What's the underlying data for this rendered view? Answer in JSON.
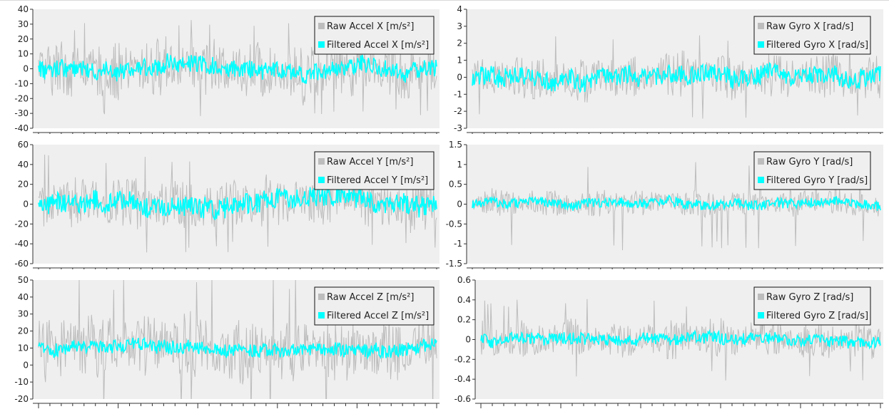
{
  "chart_data": [
    {
      "type": "line",
      "ylim": [
        -40,
        40
      ],
      "yticks": [
        -40,
        -30,
        -20,
        -10,
        0,
        10,
        20,
        30,
        40
      ],
      "ytick_labels": [
        "-40",
        "-30",
        "-20",
        "-10",
        "0",
        "10",
        "20",
        "30",
        "40"
      ],
      "legend": "top-right",
      "series": [
        {
          "name": "Raw Accel X [m/s²]",
          "color": "#bdbdbd",
          "center": 0,
          "amplitude": 20,
          "peak": 33
        },
        {
          "name": "Filtered Accel X [m/s²]",
          "color": "#00ffff",
          "center": 0,
          "amplitude": 6
        }
      ]
    },
    {
      "type": "line",
      "ylim": [
        -3,
        4
      ],
      "yticks": [
        -3,
        -2,
        -1,
        0,
        1,
        2,
        3,
        4
      ],
      "ytick_labels": [
        "-3",
        "-2",
        "-1",
        "0",
        "1",
        "2",
        "3",
        "4"
      ],
      "legend": "top-right",
      "series": [
        {
          "name": "Raw Gyro X [rad/s]",
          "color": "#bdbdbd",
          "center": 0,
          "amplitude": 1.4,
          "peak": 2.5
        },
        {
          "name": "Filtered Gyro X [rad/s]",
          "color": "#00ffff",
          "center": 0,
          "amplitude": 0.55
        }
      ]
    },
    {
      "type": "line",
      "ylim": [
        -60,
        60
      ],
      "yticks": [
        -60,
        -40,
        -20,
        0,
        20,
        40,
        60
      ],
      "ytick_labels": [
        "-60",
        "-40",
        "-20",
        "0",
        "20",
        "40",
        "60"
      ],
      "legend": "top-right",
      "series": [
        {
          "name": "Raw Accel Y [m/s²]",
          "color": "#bdbdbd",
          "center": 0,
          "amplitude": 28,
          "peak": 50
        },
        {
          "name": "Filtered Accel Y [m/s²]",
          "color": "#00ffff",
          "center": 0,
          "amplitude": 10
        }
      ]
    },
    {
      "type": "line",
      "ylim": [
        -1.5,
        1.5
      ],
      "yticks": [
        -1.5,
        -1,
        -0.5,
        0,
        0.5,
        1,
        1.5
      ],
      "ytick_labels": [
        "-1.5",
        "-1",
        "-0.5",
        "0",
        "0.5",
        "1",
        "1.5"
      ],
      "legend": "top-right",
      "series": [
        {
          "name": "Raw Gyro Y [rad/s]",
          "color": "#bdbdbd",
          "center": 0,
          "amplitude": 0.35,
          "peak": 1.2
        },
        {
          "name": "Filtered Gyro Y [rad/s]",
          "color": "#00ffff",
          "center": 0,
          "amplitude": 0.12
        }
      ]
    },
    {
      "type": "line",
      "ylim": [
        -20,
        50
      ],
      "yticks": [
        -20,
        -10,
        0,
        10,
        20,
        30,
        40,
        50
      ],
      "ytick_labels": [
        "-20",
        "-10",
        "0",
        "10",
        "20",
        "30",
        "40",
        "50"
      ],
      "legend": "top-right",
      "series": [
        {
          "name": "Raw Accel Z [m/s²]",
          "color": "#bdbdbd",
          "center": 9.8,
          "amplitude": 20,
          "peak": 44
        },
        {
          "name": "Filtered Accel Z [m/s²]",
          "color": "#00ffff",
          "center": 9.8,
          "amplitude": 4
        }
      ]
    },
    {
      "type": "line",
      "ylim": [
        -0.6,
        0.6
      ],
      "yticks": [
        -0.6,
        -0.4,
        -0.2,
        0,
        0.2,
        0.4,
        0.6
      ],
      "ytick_labels": [
        "-0.6",
        "-0.4",
        "-0.2",
        "0",
        "0.2",
        "0.4",
        "0.6"
      ],
      "legend": "top-right",
      "series": [
        {
          "name": "Raw Gyro Z [rad/s]",
          "color": "#bdbdbd",
          "center": 0,
          "amplitude": 0.2,
          "peak": 0.42
        },
        {
          "name": "Filtered Gyro Z [rad/s]",
          "color": "#00ffff",
          "center": 0,
          "amplitude": 0.06
        }
      ]
    }
  ]
}
